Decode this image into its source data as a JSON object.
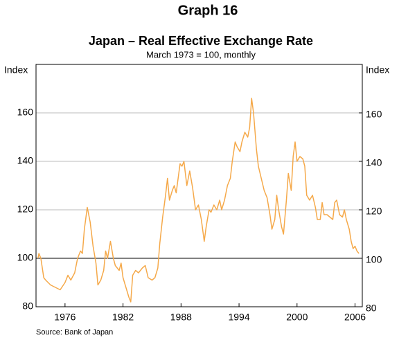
{
  "chart_data": {
    "type": "line",
    "title": "Graph 16",
    "subtitle": "Japan – Real Effective Exchange Rate",
    "note": "March 1973 = 100, monthly",
    "y_label": "Index",
    "y2_label": "Index",
    "source": "Source: Bank of Japan",
    "color": "#f5a94a",
    "grid": true,
    "reference_line": 100,
    "xlim": [
      1973,
      2006.75
    ],
    "xticks": [
      1976,
      1982,
      1988,
      1994,
      2000,
      2006
    ],
    "ylim": [
      80,
      180
    ],
    "yticks": [
      80,
      100,
      120,
      140,
      160
    ],
    "y2lim": [
      80,
      180
    ],
    "y2ticks": [
      80,
      100,
      120,
      140,
      160
    ],
    "x": [
      1973.2,
      1973.3,
      1973.5,
      1973.8,
      1974,
      1974.5,
      1975,
      1975.5,
      1976,
      1976.3,
      1976.6,
      1977,
      1977.3,
      1977.6,
      1977.8,
      1978,
      1978.3,
      1978.6,
      1978.9,
      1979.2,
      1979.4,
      1979.7,
      1980,
      1980.2,
      1980.4,
      1980.7,
      1981,
      1981.2,
      1981.4,
      1981.6,
      1981.8,
      1982,
      1982.3,
      1982.6,
      1982.8,
      1983,
      1983.3,
      1983.6,
      1984,
      1984.3,
      1984.6,
      1985,
      1985.3,
      1985.6,
      1985.8,
      1986.1,
      1986.4,
      1986.6,
      1986.8,
      1987.1,
      1987.3,
      1987.5,
      1987.9,
      1988.1,
      1988.3,
      1988.6,
      1988.9,
      1989.2,
      1989.5,
      1989.8,
      1990.1,
      1990.4,
      1990.6,
      1990.9,
      1991.1,
      1991.4,
      1991.7,
      1992,
      1992.2,
      1992.5,
      1992.8,
      1993.1,
      1993.3,
      1993.6,
      1993.8,
      1994.1,
      1994.3,
      1994.6,
      1994.9,
      1995.1,
      1995.3,
      1995.5,
      1995.8,
      1996,
      1996.3,
      1996.6,
      1996.9,
      1997.2,
      1997.4,
      1997.7,
      1997.9,
      1998.1,
      1998.4,
      1998.6,
      1998.9,
      1999.1,
      1999.4,
      1999.6,
      1999.8,
      2000,
      2000.3,
      2000.6,
      2000.8,
      2001,
      2001.3,
      2001.6,
      2001.9,
      2002.1,
      2002.4,
      2002.6,
      2002.8,
      2003.1,
      2003.4,
      2003.7,
      2003.9,
      2004.1,
      2004.4,
      2004.7,
      2004.9,
      2005.1,
      2005.4,
      2005.6,
      2005.8,
      2006,
      2006.2,
      2006.4
    ],
    "values": [
      100,
      102,
      100,
      92,
      91,
      89,
      88,
      87,
      90,
      93,
      91,
      94,
      100,
      103,
      102,
      112,
      121,
      115,
      105,
      98,
      89,
      91,
      95,
      103,
      100,
      107,
      100,
      97,
      96,
      95,
      98,
      92,
      88,
      84,
      82,
      93,
      95,
      94,
      96,
      97,
      92,
      91,
      92,
      96,
      106,
      117,
      126,
      133,
      124,
      128,
      130,
      127,
      139,
      138,
      140,
      130,
      136,
      129,
      120,
      122,
      116,
      107,
      113,
      120,
      119,
      122,
      120,
      124,
      120,
      124,
      130,
      133,
      140,
      148,
      146,
      144,
      148,
      152,
      150,
      154,
      166,
      160,
      145,
      138,
      133,
      128,
      125,
      118,
      112,
      116,
      126,
      120,
      113,
      110,
      124,
      135,
      128,
      142,
      148,
      140,
      142,
      141,
      138,
      126,
      124,
      126,
      121,
      116,
      116,
      123,
      118,
      118,
      117,
      116,
      123,
      124,
      118,
      117,
      120,
      116,
      112,
      107,
      104,
      105,
      103,
      102
    ]
  }
}
